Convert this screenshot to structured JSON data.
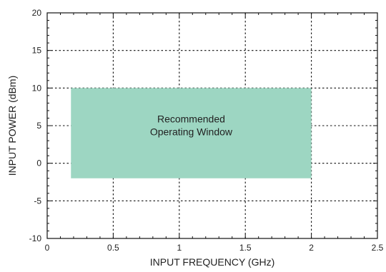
{
  "chart_data": {
    "type": "area",
    "title": "",
    "xlabel": "INPUT FREQUENCY (GHz)",
    "ylabel": "INPUT POWER (dBm)",
    "xlim": [
      0,
      2.5
    ],
    "ylim": [
      -10,
      20
    ],
    "xticks": [
      0,
      0.5,
      1,
      1.5,
      2,
      2.5
    ],
    "yticks": [
      -10,
      -5,
      0,
      5,
      10,
      15,
      20
    ],
    "xtick_labels": [
      "0",
      "0.5",
      "1",
      "1.5",
      "2",
      "2.5"
    ],
    "ytick_labels": [
      "-10",
      "-5",
      "0",
      "5",
      "10",
      "15",
      "20"
    ],
    "grid": true,
    "grid_style": "dotted",
    "regions": [
      {
        "x": [
          0.18,
          2.0
        ],
        "y": [
          -2,
          10
        ],
        "color": "#9dd6c2",
        "label_lines": [
          "Recommended",
          "Operating Window"
        ]
      }
    ]
  }
}
